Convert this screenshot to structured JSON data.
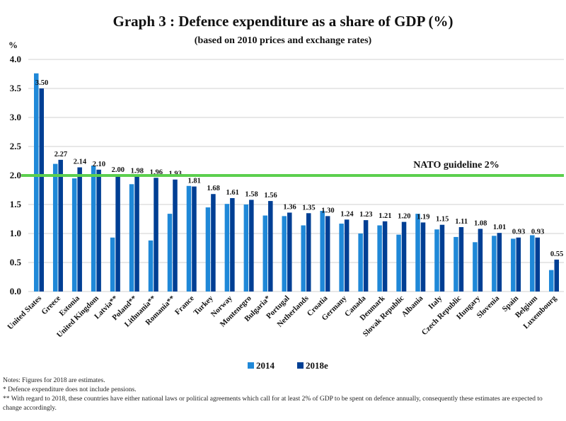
{
  "chart_data": {
    "type": "bar",
    "title": "Graph 3 : Defence expenditure as a share of GDP (%)",
    "subtitle": "(based on 2010 prices and exchange rates)",
    "ylabel": "%",
    "ylim": [
      0,
      4.0
    ],
    "yticks": [
      "0.0",
      "0.5",
      "1.0",
      "1.5",
      "2.0",
      "2.5",
      "3.0",
      "3.5",
      "4.0"
    ],
    "grid": true,
    "legend": "bottom",
    "categories": [
      "United States",
      "Greece",
      "Estonia",
      "United Kingdom",
      "Latvia**",
      "Poland**",
      "Lithuania**",
      "Romania**",
      "France",
      "Turkey",
      "Norway",
      "Montenegro",
      "Bulgaria*",
      "Portugal",
      "Netherlands",
      "Croatia",
      "Germany",
      "Canada",
      "Denmark",
      "Slovak Republic",
      "Albania",
      "Italy",
      "Czech Republic",
      "Hungary",
      "Slovenia",
      "Spain",
      "Belgium",
      "Luxembourg"
    ],
    "series": [
      {
        "name": "2014",
        "color": "#1f88d8",
        "values": [
          3.76,
          2.2,
          1.95,
          2.17,
          0.93,
          1.85,
          0.88,
          1.34,
          1.82,
          1.45,
          1.51,
          1.5,
          1.31,
          1.3,
          1.14,
          1.39,
          1.17,
          1.0,
          1.14,
          0.98,
          1.34,
          1.07,
          0.94,
          0.85,
          0.96,
          0.91,
          0.97,
          0.37
        ]
      },
      {
        "name": "2018e",
        "color": "#003f94",
        "values": [
          3.5,
          2.27,
          2.14,
          2.1,
          2.0,
          1.98,
          1.96,
          1.93,
          1.81,
          1.68,
          1.61,
          1.58,
          1.56,
          1.36,
          1.35,
          1.3,
          1.24,
          1.23,
          1.21,
          1.2,
          1.19,
          1.15,
          1.11,
          1.08,
          1.01,
          0.93,
          0.93,
          0.55
        ],
        "data_labels": [
          "3.50",
          "2.27",
          "2.14",
          "2.10",
          "2.00",
          "1.98",
          "1.96",
          "1.93",
          "1.81",
          "1.68",
          "1.61",
          "1.58",
          "1.56",
          "1.36",
          "1.35",
          "1.30",
          "1.24",
          "1.23",
          "1.21",
          "1.20",
          "1.19",
          "1.15",
          "1.11",
          "1.08",
          "1.01",
          "0.93",
          "0.93",
          "0.55"
        ]
      }
    ],
    "reference_line": {
      "value": 2.0,
      "label": "NATO guideline 2%",
      "color": "#5ccf4e"
    }
  },
  "notes": [
    "Notes: Figures for 2018 are estimates.",
    "*   Defence expenditure does not include pensions.",
    "**  With regard to 2018, these countries have either national laws or political agreements which call for at least 2% of GDP to be spent on defence annually, consequently these estimates are expected to change accordingly."
  ]
}
